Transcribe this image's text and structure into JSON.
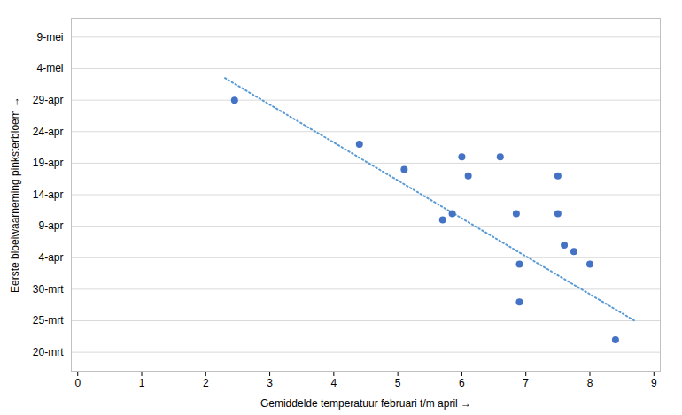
{
  "chart_data": {
    "type": "scatter",
    "xlabel": "Gemiddelde temperatuur februari t/m april",
    "ylabel": "Eerste bloeiwaarneming pinksterbloem",
    "series": [
      {
        "type": "scatter",
        "color": "#4472C4",
        "x": [
          2.45,
          4.4,
          5.1,
          5.7,
          5.85,
          6.0,
          6.1,
          6.6,
          6.85,
          6.9,
          6.9,
          7.5,
          7.5,
          7.6,
          7.75,
          8.0,
          8.4
        ],
        "values": [
          40,
          33,
          29,
          21,
          22,
          31,
          28,
          31,
          22,
          14,
          8,
          28,
          22,
          17,
          16,
          14,
          2
        ]
      },
      {
        "type": "line",
        "color": "#5B9BD5",
        "line_style": "dotted",
        "x": [
          2.3,
          8.7
        ],
        "values": [
          43.5,
          5.0
        ]
      }
    ],
    "xlim": [
      -0.1,
      9.1
    ],
    "xticks": [
      0,
      1,
      2,
      3,
      4,
      5,
      6,
      7,
      8,
      9
    ],
    "ylim": [
      -3,
      53
    ],
    "yticks": [
      {
        "value": 0,
        "label": "20-mrt"
      },
      {
        "value": 5,
        "label": "25-mrt"
      },
      {
        "value": 10,
        "label": "30-mrt"
      },
      {
        "value": 15,
        "label": "4-apr"
      },
      {
        "value": 20,
        "label": "9-apr"
      },
      {
        "value": 25,
        "label": "14-apr"
      },
      {
        "value": 30,
        "label": "19-apr"
      },
      {
        "value": 35,
        "label": "24-apr"
      },
      {
        "value": 40,
        "label": "29-apr"
      },
      {
        "value": 45,
        "label": "4-mei"
      },
      {
        "value": 50,
        "label": "9-mei"
      }
    ],
    "grid": "y"
  }
}
